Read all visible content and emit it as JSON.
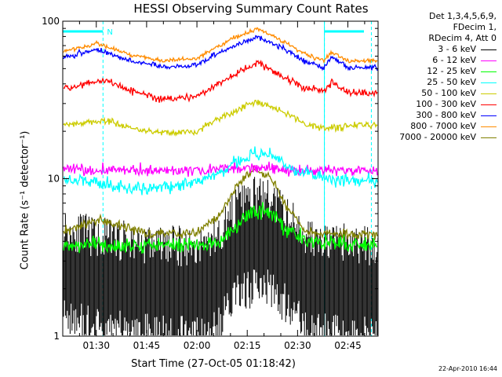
{
  "chart_data": {
    "type": "line",
    "title": "HESSI Observing Summary Count Rates",
    "ylabel": "Count Rate (s⁻¹ detector⁻¹)",
    "xlabel": "Start Time (27-Oct-05 01:18:42)",
    "y_scale": "log",
    "ylim": [
      1,
      100
    ],
    "y_ticks": [
      "1",
      "10",
      "100"
    ],
    "x_range_minutes": [
      "01:20",
      "02:54"
    ],
    "x_ticks": [
      "01:30",
      "01:45",
      "02:00",
      "02:15",
      "02:30",
      "02:45"
    ],
    "info": [
      "Det 1,3,4,5,6,9,",
      "FDecim 1,",
      "RDecim 4, Att 0"
    ],
    "flag_label": "N",
    "timestamp": "22-Apr-2010 16:44",
    "dashed_lines": [
      "01:32",
      "02:38",
      "02:52"
    ],
    "solid_lines": [
      "01:20",
      "02:38"
    ],
    "series": [
      {
        "name": "3 - 6 keV",
        "color": "#000000",
        "noise": 0.6,
        "style": "hatch",
        "x": [
          "01:20",
          "01:30",
          "01:45",
          "02:00",
          "02:07",
          "02:12",
          "02:17",
          "02:22",
          "02:27",
          "02:32",
          "02:37",
          "02:45",
          "02:54"
        ],
        "y": [
          2.5,
          2.2,
          2.0,
          1.9,
          2.3,
          3.5,
          4.0,
          3.8,
          3.0,
          2.3,
          2.0,
          2.0,
          1.9
        ]
      },
      {
        "name": "6 - 12 keV",
        "color": "#ff00ff",
        "noise": 0.08,
        "x": [
          "01:20",
          "01:45",
          "02:00",
          "02:15",
          "02:20",
          "02:30",
          "02:45",
          "02:54"
        ],
        "y": [
          11.5,
          11.2,
          11.3,
          11.8,
          11.6,
          11.4,
          11.2,
          11.2
        ]
      },
      {
        "name": "12 - 25 keV",
        "color": "#00ff00",
        "noise": 0.12,
        "x": [
          "01:20",
          "01:45",
          "02:00",
          "02:07",
          "02:12",
          "02:17",
          "02:22",
          "02:27",
          "02:32",
          "02:54"
        ],
        "y": [
          3.8,
          3.8,
          3.8,
          4.0,
          5.0,
          6.3,
          6.0,
          4.8,
          4.0,
          3.8
        ]
      },
      {
        "name": "25 - 50 keV",
        "color": "#00ffff",
        "noise": 0.1,
        "x": [
          "01:20",
          "01:30",
          "01:40",
          "01:50",
          "02:00",
          "02:07",
          "02:14",
          "02:18",
          "02:24",
          "02:30",
          "02:38",
          "02:45",
          "02:54"
        ],
        "y": [
          9.8,
          9.5,
          8.5,
          8.8,
          9.5,
          11.0,
          13.5,
          14.8,
          13.0,
          11.0,
          10.0,
          9.8,
          9.8
        ]
      },
      {
        "name": "50 - 100 keV",
        "color": "#cccc00",
        "noise": 0.05,
        "x": [
          "01:20",
          "01:32",
          "01:40",
          "01:50",
          "02:00",
          "02:10",
          "02:18",
          "02:25",
          "02:32",
          "02:38",
          "02:45",
          "02:54"
        ],
        "y": [
          22,
          23.5,
          21,
          19.5,
          20,
          26,
          31,
          27,
          22,
          21,
          21.5,
          22
        ]
      },
      {
        "name": "100 - 300 keV",
        "color": "#ff0000",
        "noise": 0.05,
        "x": [
          "01:20",
          "01:32",
          "01:40",
          "01:50",
          "02:00",
          "02:10",
          "02:18",
          "02:25",
          "02:32",
          "02:38",
          "02:40",
          "02:45",
          "02:54"
        ],
        "y": [
          37,
          42,
          36,
          32,
          33,
          44,
          55,
          45,
          38,
          36,
          41,
          35,
          35
        ]
      },
      {
        "name": "300 - 800 keV",
        "color": "#0000ff",
        "noise": 0.04,
        "x": [
          "01:20",
          "01:30",
          "01:40",
          "01:50",
          "02:00",
          "02:10",
          "02:18",
          "02:25",
          "02:32",
          "02:38",
          "02:40",
          "02:45",
          "02:54"
        ],
        "y": [
          59,
          66,
          56,
          51,
          53,
          68,
          80,
          68,
          56,
          51,
          59,
          51,
          51
        ]
      },
      {
        "name": "800 - 7000 keV",
        "color": "#ff8c00",
        "noise": 0.03,
        "x": [
          "01:20",
          "01:30",
          "01:40",
          "01:50",
          "02:00",
          "02:10",
          "02:18",
          "02:25",
          "02:32",
          "02:38",
          "02:40",
          "02:45",
          "02:54"
        ],
        "y": [
          64,
          72,
          61,
          56,
          58,
          76,
          90,
          76,
          62,
          56,
          64,
          56,
          56
        ]
      },
      {
        "name": "7000 - 20000 keV",
        "color": "#808000",
        "noise": 0.07,
        "x": [
          "01:20",
          "01:30",
          "01:45",
          "02:00",
          "02:07",
          "02:12",
          "02:17",
          "02:22",
          "02:27",
          "02:32",
          "02:40",
          "02:54"
        ],
        "y": [
          4.5,
          5.5,
          4.5,
          4.5,
          6.0,
          9.0,
          11.5,
          10.0,
          6.5,
          4.6,
          4.4,
          4.4
        ]
      }
    ]
  }
}
